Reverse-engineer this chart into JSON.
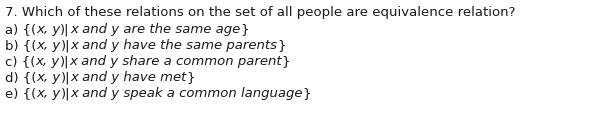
{
  "background_color": "#ffffff",
  "text_color": "#1a1a1a",
  "font_size": 9.5,
  "fig_width": 5.96,
  "fig_height": 1.19,
  "dpi": 100,
  "title": "7. Which of these relations on the set of all people are equivalence relation?",
  "lines": [
    {
      "prefix": "a) {(",
      "xy": "x, y",
      "middle": ")|",
      "italic": "x and y are the same age",
      "suffix": "}"
    },
    {
      "prefix": "b) {(",
      "xy": "x, y",
      "middle": ")|",
      "italic": "x and y have the same parents",
      "suffix": "}"
    },
    {
      "prefix": "c) {(",
      "xy": "x, y",
      "middle": ")|",
      "italic": "x and y share a common parent",
      "suffix": "}"
    },
    {
      "prefix": "d) {(",
      "xy": "x, y",
      "middle": ")|",
      "italic": "x and y have met",
      "suffix": "}"
    },
    {
      "prefix": "e) {(",
      "xy": "x, y",
      "middle": ")|",
      "italic": "x and y speak a common language",
      "suffix": "}"
    }
  ]
}
